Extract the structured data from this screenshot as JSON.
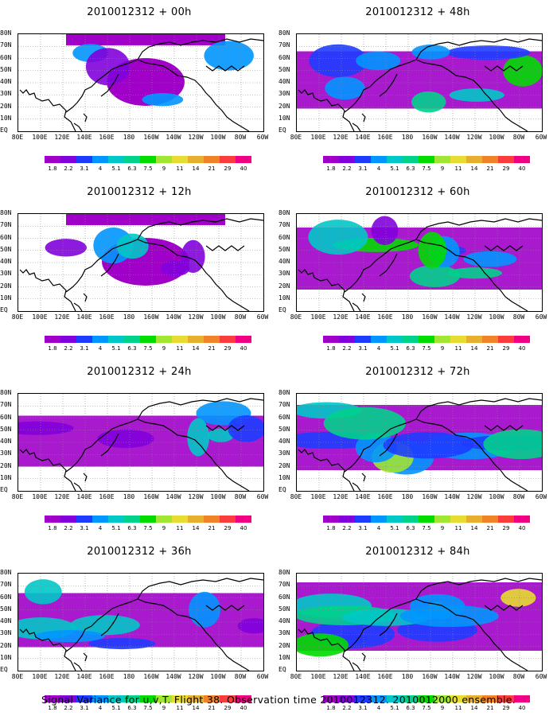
{
  "panels": [
    {
      "title": "2010012312 + 00h",
      "level": 0.15
    },
    {
      "title": "2010012312 + 48h",
      "level": 0.55
    },
    {
      "title": "2010012312 + 12h",
      "level": 0.25
    },
    {
      "title": "2010012312 + 60h",
      "level": 0.7
    },
    {
      "title": "2010012312 + 24h",
      "level": 0.35
    },
    {
      "title": "2010012312 + 72h",
      "level": 0.8
    },
    {
      "title": "2010012312 + 36h",
      "level": 0.45
    },
    {
      "title": "2010012312 + 84h",
      "level": 0.9
    }
  ],
  "lat_labels": [
    "80N",
    "70N",
    "60N",
    "50N",
    "40N",
    "30N",
    "20N",
    "10N",
    "EQ"
  ],
  "lon_labels": [
    "80E",
    "100E",
    "120E",
    "140E",
    "160E",
    "180",
    "160W",
    "140W",
    "120W",
    "100W",
    "80W",
    "60W"
  ],
  "colorbar": {
    "labels": [
      "1.8",
      "2.2",
      "3.1",
      "4",
      "5.1",
      "6.3",
      "7.5",
      "9",
      "11",
      "14",
      "21",
      "29",
      "40"
    ],
    "colors": [
      "#a000c8",
      "#8200dc",
      "#1e3cff",
      "#0096ff",
      "#00c8c8",
      "#00d28c",
      "#00dc00",
      "#a0e632",
      "#e6dc32",
      "#e6af2d",
      "#f08228",
      "#fa3c3c",
      "#f00082"
    ]
  },
  "footer": "Signal Variance for u,v,T. Flight 38. Observation time 2010012312. 2010012000 ensemble."
}
